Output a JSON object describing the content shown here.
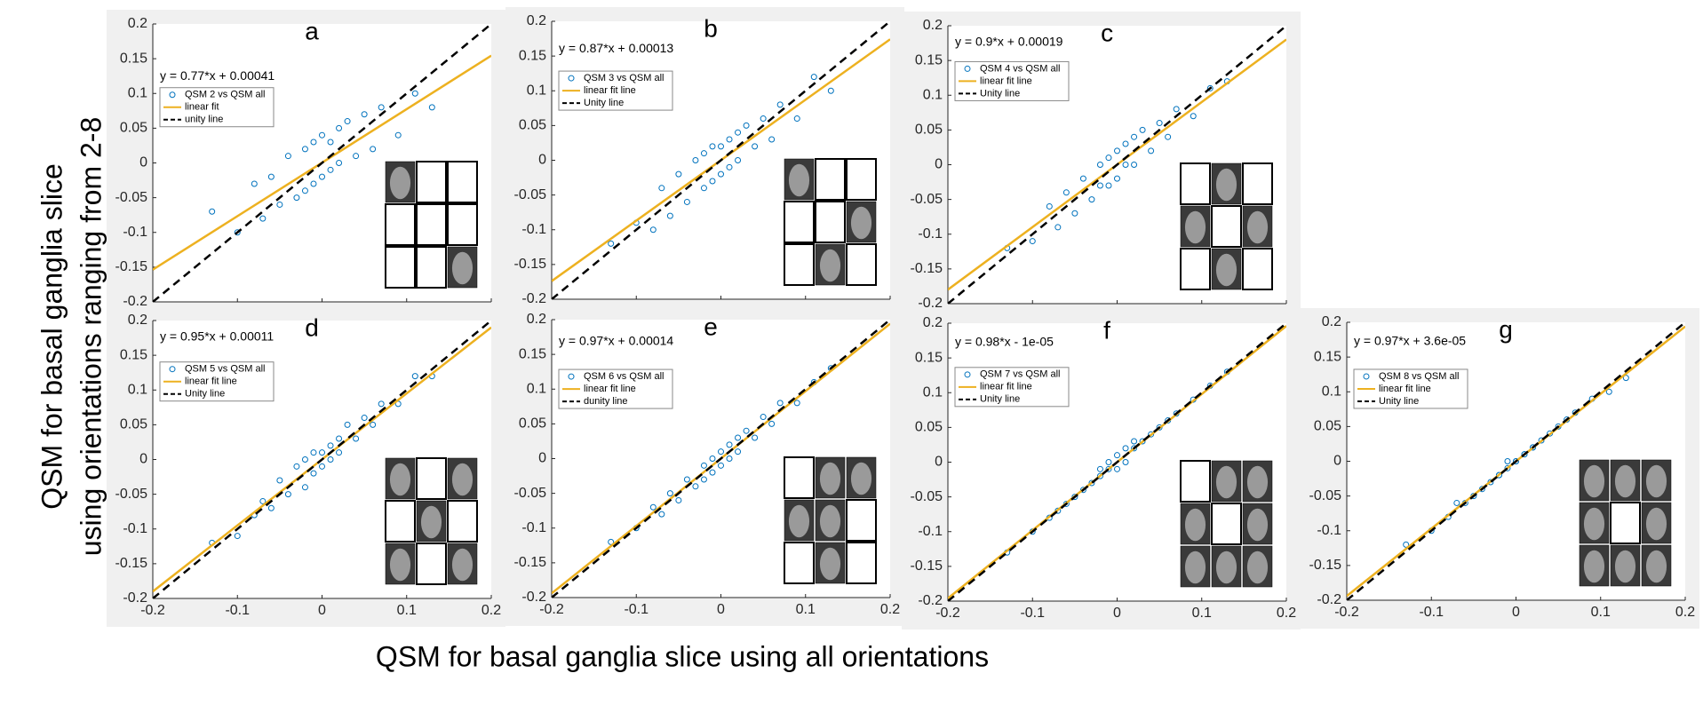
{
  "figure": {
    "xlabel": "QSM for basal ganglia slice using all orientations",
    "ylabel": [
      "QSM for basal ganglia slice",
      "using orientations ranging from 2-8"
    ]
  },
  "chart_data": [
    {
      "type": "scatter",
      "title": "a",
      "xlim": [
        -0.2,
        0.2
      ],
      "ylim": [
        -0.2,
        0.2
      ],
      "xticks": [
        -0.2,
        -0.1,
        0,
        0.1,
        0.2
      ],
      "yticks": [
        -0.2,
        -0.15,
        -0.1,
        -0.05,
        0,
        0.05,
        0.1,
        0.15,
        0.2
      ],
      "series": [
        {
          "name": "QSM 2 vs QSM all",
          "color": "#0072bd",
          "x": [
            -0.13,
            -0.1,
            -0.08,
            -0.07,
            -0.06,
            -0.05,
            -0.04,
            -0.03,
            -0.02,
            -0.02,
            -0.01,
            -0.01,
            0,
            0,
            0.01,
            0.01,
            0.02,
            0.02,
            0.03,
            0.04,
            0.05,
            0.06,
            0.07,
            0.09,
            0.11,
            0.13
          ],
          "values": [
            -0.07,
            -0.1,
            -0.03,
            -0.08,
            -0.02,
            -0.06,
            0.01,
            -0.05,
            0.02,
            -0.04,
            0.03,
            -0.03,
            0.04,
            -0.02,
            0.03,
            -0.01,
            0.05,
            0,
            0.06,
            0.01,
            0.07,
            0.02,
            0.08,
            0.04,
            0.1,
            0.08
          ]
        }
      ],
      "fit": {
        "name": "linear fit",
        "color": "#edb120",
        "label": "y = 0.77*x + 0.00041",
        "slope": 0.77,
        "intercept": 0.00041
      },
      "unity": {
        "name": "unity line"
      }
    },
    {
      "type": "scatter",
      "title": "b",
      "xlim": [
        -0.2,
        0.2
      ],
      "ylim": [
        -0.2,
        0.2
      ],
      "xticks": [
        -0.2,
        -0.1,
        0,
        0.1,
        0.2
      ],
      "yticks": [
        -0.2,
        -0.15,
        -0.1,
        -0.05,
        0,
        0.05,
        0.1,
        0.15,
        0.2
      ],
      "series": [
        {
          "name": "QSM 3 vs QSM all",
          "color": "#0072bd",
          "x": [
            -0.13,
            -0.1,
            -0.08,
            -0.07,
            -0.06,
            -0.05,
            -0.04,
            -0.03,
            -0.02,
            -0.02,
            -0.01,
            -0.01,
            0,
            0,
            0.01,
            0.01,
            0.02,
            0.02,
            0.03,
            0.04,
            0.05,
            0.06,
            0.07,
            0.09,
            0.11,
            0.13
          ],
          "values": [
            -0.12,
            -0.09,
            -0.1,
            -0.04,
            -0.08,
            -0.02,
            -0.06,
            0,
            -0.04,
            0.01,
            -0.03,
            0.02,
            0.02,
            -0.02,
            0.03,
            -0.01,
            0.04,
            0,
            0.05,
            0.02,
            0.06,
            0.03,
            0.08,
            0.06,
            0.12,
            0.1
          ]
        }
      ],
      "fit": {
        "name": "linear fit line",
        "color": "#edb120",
        "label": "y = 0.87*x + 0.00013",
        "slope": 0.87,
        "intercept": 0.00013
      },
      "unity": {
        "name": "Unity line"
      }
    },
    {
      "type": "scatter",
      "title": "c",
      "xlim": [
        -0.2,
        0.2
      ],
      "ylim": [
        -0.2,
        0.2
      ],
      "xticks": [
        -0.2,
        -0.1,
        0,
        0.1,
        0.2
      ],
      "yticks": [
        -0.2,
        -0.15,
        -0.1,
        -0.05,
        0,
        0.05,
        0.1,
        0.15,
        0.2
      ],
      "series": [
        {
          "name": "QSM 4 vs QSM all",
          "color": "#0072bd",
          "x": [
            -0.13,
            -0.1,
            -0.08,
            -0.07,
            -0.06,
            -0.05,
            -0.04,
            -0.03,
            -0.02,
            -0.02,
            -0.01,
            -0.01,
            0,
            0,
            0.01,
            0.01,
            0.02,
            0.02,
            0.03,
            0.04,
            0.05,
            0.06,
            0.07,
            0.09,
            0.11,
            0.13
          ],
          "values": [
            -0.12,
            -0.11,
            -0.06,
            -0.09,
            -0.04,
            -0.07,
            -0.02,
            -0.05,
            0,
            -0.03,
            0.01,
            -0.03,
            0.02,
            -0.02,
            0.03,
            0,
            0.04,
            0,
            0.05,
            0.02,
            0.06,
            0.04,
            0.08,
            0.07,
            0.11,
            0.12
          ]
        }
      ],
      "fit": {
        "name": "linear fit line",
        "color": "#edb120",
        "label": "y = 0.9*x + 0.00019",
        "slope": 0.9,
        "intercept": 0.00019
      },
      "unity": {
        "name": "Unity line"
      }
    },
    {
      "type": "scatter",
      "title": "d",
      "xlim": [
        -0.2,
        0.2
      ],
      "ylim": [
        -0.2,
        0.2
      ],
      "xticks": [
        -0.2,
        -0.1,
        0,
        0.1,
        0.2
      ],
      "yticks": [
        -0.2,
        -0.15,
        -0.1,
        -0.05,
        0,
        0.05,
        0.1,
        0.15,
        0.2
      ],
      "series": [
        {
          "name": "QSM 5 vs QSM all",
          "color": "#0072bd",
          "x": [
            -0.13,
            -0.1,
            -0.08,
            -0.07,
            -0.06,
            -0.05,
            -0.04,
            -0.03,
            -0.02,
            -0.02,
            -0.01,
            -0.01,
            0,
            0,
            0.01,
            0.01,
            0.02,
            0.02,
            0.03,
            0.04,
            0.05,
            0.06,
            0.07,
            0.09,
            0.11,
            0.13
          ],
          "values": [
            -0.12,
            -0.11,
            -0.08,
            -0.06,
            -0.07,
            -0.03,
            -0.05,
            -0.01,
            -0.04,
            0,
            -0.02,
            0.01,
            0.01,
            -0.01,
            0.02,
            0,
            0.03,
            0.01,
            0.05,
            0.03,
            0.06,
            0.05,
            0.08,
            0.08,
            0.12,
            0.12
          ]
        }
      ],
      "fit": {
        "name": "linear fit line",
        "color": "#edb120",
        "label": "y = 0.95*x + 0.00011",
        "slope": 0.95,
        "intercept": 0.00011
      },
      "unity": {
        "name": "Unity line"
      }
    },
    {
      "type": "scatter",
      "title": "e",
      "xlim": [
        -0.2,
        0.2
      ],
      "ylim": [
        -0.2,
        0.2
      ],
      "xticks": [
        -0.2,
        -0.1,
        0,
        0.1,
        0.2
      ],
      "yticks": [
        -0.2,
        -0.15,
        -0.1,
        -0.05,
        0,
        0.05,
        0.1,
        0.15,
        0.2
      ],
      "series": [
        {
          "name": "QSM 6 vs QSM all",
          "color": "#0072bd",
          "x": [
            -0.13,
            -0.1,
            -0.08,
            -0.07,
            -0.06,
            -0.05,
            -0.04,
            -0.03,
            -0.02,
            -0.02,
            -0.01,
            -0.01,
            0,
            0,
            0.01,
            0.01,
            0.02,
            0.02,
            0.03,
            0.04,
            0.05,
            0.06,
            0.07,
            0.09,
            0.11,
            0.13
          ],
          "values": [
            -0.12,
            -0.1,
            -0.07,
            -0.08,
            -0.05,
            -0.06,
            -0.03,
            -0.04,
            -0.01,
            -0.03,
            0,
            -0.02,
            0.01,
            -0.01,
            0.02,
            0,
            0.03,
            0.01,
            0.04,
            0.03,
            0.06,
            0.05,
            0.08,
            0.08,
            0.11,
            0.13
          ]
        }
      ],
      "fit": {
        "name": "linear fit line",
        "color": "#edb120",
        "label": "y = 0.97*x + 0.00014",
        "slope": 0.97,
        "intercept": 0.00014
      },
      "unity": {
        "name": "dunity line"
      }
    },
    {
      "type": "scatter",
      "title": "f",
      "xlim": [
        -0.2,
        0.2
      ],
      "ylim": [
        -0.2,
        0.2
      ],
      "xticks": [
        -0.2,
        -0.1,
        0,
        0.1,
        0.2
      ],
      "yticks": [
        -0.2,
        -0.15,
        -0.1,
        -0.05,
        0,
        0.05,
        0.1,
        0.15,
        0.2
      ],
      "series": [
        {
          "name": "QSM 7 vs QSM all",
          "color": "#0072bd",
          "x": [
            -0.13,
            -0.1,
            -0.08,
            -0.07,
            -0.06,
            -0.05,
            -0.04,
            -0.03,
            -0.02,
            -0.02,
            -0.01,
            -0.01,
            0,
            0,
            0.01,
            0.01,
            0.02,
            0.02,
            0.03,
            0.04,
            0.05,
            0.06,
            0.07,
            0.09,
            0.11,
            0.13
          ],
          "values": [
            -0.13,
            -0.1,
            -0.08,
            -0.07,
            -0.06,
            -0.05,
            -0.04,
            -0.03,
            -0.02,
            -0.01,
            -0.01,
            0,
            0.01,
            -0.01,
            0.02,
            0,
            0.03,
            0.02,
            0.03,
            0.04,
            0.05,
            0.06,
            0.07,
            0.09,
            0.11,
            0.13
          ]
        }
      ],
      "fit": {
        "name": "linear fit line",
        "color": "#edb120",
        "label": "y = 0.98*x - 1e-05",
        "slope": 0.98,
        "intercept": -1e-05
      },
      "unity": {
        "name": "Unity line"
      }
    },
    {
      "type": "scatter",
      "title": "g",
      "xlim": [
        -0.2,
        0.2
      ],
      "ylim": [
        -0.2,
        0.2
      ],
      "xticks": [
        -0.2,
        -0.1,
        0,
        0.1,
        0.2
      ],
      "yticks": [
        -0.2,
        -0.15,
        -0.1,
        -0.05,
        0,
        0.05,
        0.1,
        0.15,
        0.2
      ],
      "series": [
        {
          "name": "QSM 8 vs QSM all",
          "color": "#0072bd",
          "x": [
            -0.13,
            -0.1,
            -0.08,
            -0.07,
            -0.06,
            -0.05,
            -0.04,
            -0.03,
            -0.02,
            -0.02,
            -0.01,
            -0.01,
            0,
            0,
            0.01,
            0.01,
            0.02,
            0.02,
            0.03,
            0.04,
            0.05,
            0.06,
            0.07,
            0.09,
            0.11,
            0.13
          ],
          "values": [
            -0.12,
            -0.1,
            -0.08,
            -0.06,
            -0.06,
            -0.05,
            -0.04,
            -0.03,
            -0.02,
            -0.02,
            -0.01,
            0,
            0,
            0,
            0.01,
            0.01,
            0.02,
            0.02,
            0.03,
            0.04,
            0.05,
            0.06,
            0.07,
            0.09,
            0.1,
            0.12
          ]
        }
      ],
      "fit": {
        "name": "linear fit line",
        "color": "#edb120",
        "label": "y = 0.97*x + 3.6e-05",
        "slope": 0.97,
        "intercept": 3.6e-05
      },
      "unity": {
        "name": "Unity line"
      }
    }
  ]
}
